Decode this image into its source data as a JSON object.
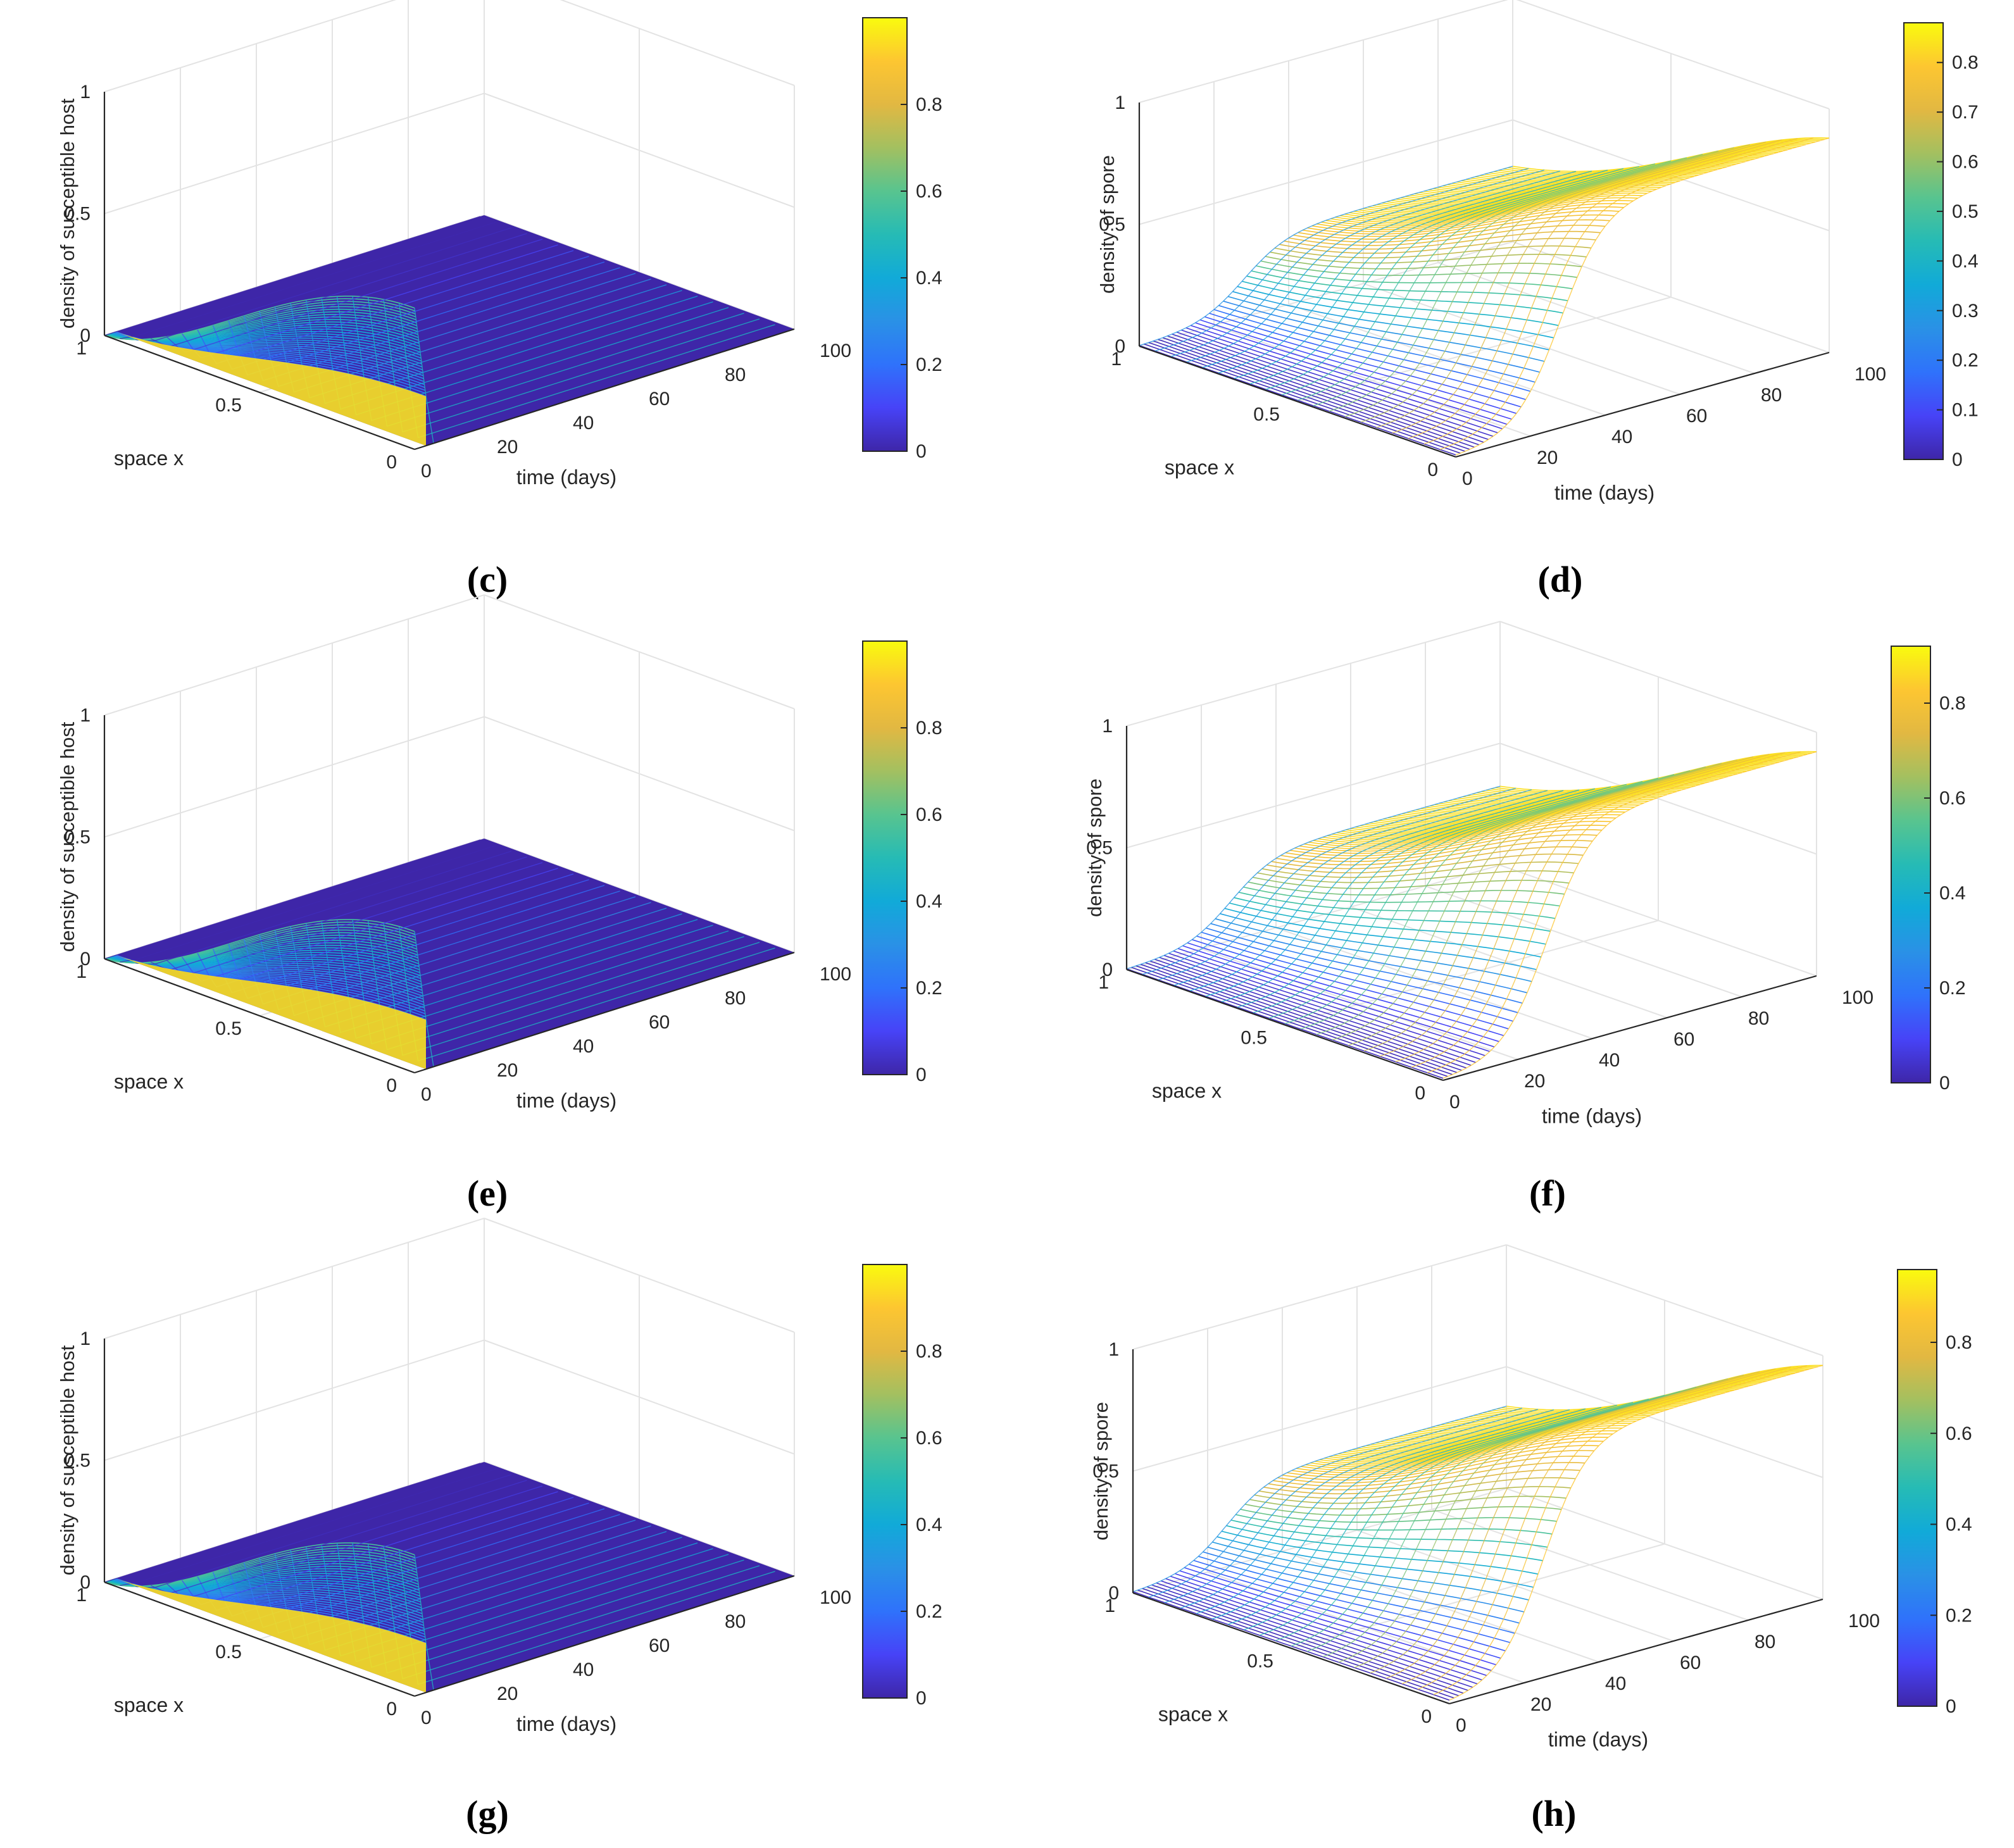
{
  "figure": {
    "colormap": [
      "#3e26a8",
      "#4743f7",
      "#2f72fb",
      "#2a91e6",
      "#11aad8",
      "#26bbb5",
      "#58c48f",
      "#a3c060",
      "#e2b842",
      "#fdc631",
      "#f9fb0e"
    ],
    "colors": {
      "axis": "#262626",
      "grid": "#e3e3e3",
      "mesh_low": "#3e26a8",
      "mesh_high": "#f9fb0e"
    }
  },
  "chart_data": [
    {
      "id": "c",
      "type": "surface",
      "caption": "(c)",
      "title": "",
      "zlabel": "density of susceptible host",
      "xlabel": "space x",
      "ylabel": "time (days)",
      "x_range": [
        0,
        1
      ],
      "t_range": [
        0,
        100
      ],
      "zlim": [
        0,
        1
      ],
      "z_ticks": [
        "0",
        "0.5",
        "1"
      ],
      "x_ticks": [
        "0",
        "0.5",
        "1"
      ],
      "t_ticks": [
        "0",
        "20",
        "40",
        "60",
        "80",
        "100"
      ],
      "colorbar_ticks": [
        "0",
        "0.2",
        "0.4",
        "0.6",
        "0.8"
      ],
      "colorbar_max": 1.0,
      "profile": {
        "kind": "host",
        "peak": 0.58,
        "t_end": 3
      }
    },
    {
      "id": "d",
      "type": "surface",
      "caption": "(d)",
      "title": "",
      "zlabel": "density of spore",
      "xlabel": "space x",
      "ylabel": "time (days)",
      "x_range": [
        0,
        1
      ],
      "t_range": [
        0,
        100
      ],
      "zlim": [
        0,
        1
      ],
      "z_ticks": [
        "0",
        "0.5",
        "1"
      ],
      "x_ticks": [
        "0",
        "0.5",
        "1"
      ],
      "t_ticks": [
        "0",
        "20",
        "40",
        "60",
        "80",
        "100"
      ],
      "colorbar_ticks": [
        "0",
        "0.1",
        "0.2",
        "0.3",
        "0.4",
        "0.5",
        "0.6",
        "0.7",
        "0.8"
      ],
      "colorbar_max": 0.88,
      "profile": {
        "kind": "spore",
        "plateau": 0.88,
        "rise_t": 28
      }
    },
    {
      "id": "e",
      "type": "surface",
      "caption": "(e)",
      "title": "",
      "zlabel": "density of susceptible host",
      "xlabel": "space x",
      "ylabel": "time (days)",
      "x_range": [
        0,
        1
      ],
      "t_range": [
        0,
        100
      ],
      "zlim": [
        0,
        1
      ],
      "z_ticks": [
        "0",
        "0.5",
        "1"
      ],
      "x_ticks": [
        "0",
        "0.5",
        "1"
      ],
      "t_ticks": [
        "0",
        "20",
        "40",
        "60",
        "80",
        "100"
      ],
      "colorbar_ticks": [
        "0",
        "0.2",
        "0.4",
        "0.6",
        "0.8"
      ],
      "colorbar_max": 1.0,
      "profile": {
        "kind": "host",
        "peak": 0.58,
        "t_end": 3
      }
    },
    {
      "id": "f",
      "type": "surface",
      "caption": "(f)",
      "title": "",
      "zlabel": "density of spore",
      "xlabel": "space x",
      "ylabel": "time (days)",
      "x_range": [
        0,
        1
      ],
      "t_range": [
        0,
        100
      ],
      "zlim": [
        0,
        1
      ],
      "z_ticks": [
        "0",
        "0.5",
        "1"
      ],
      "x_ticks": [
        "0",
        "0.5",
        "1"
      ],
      "t_ticks": [
        "0",
        "20",
        "40",
        "60",
        "80",
        "100"
      ],
      "colorbar_ticks": [
        "0",
        "0.2",
        "0.4",
        "0.6",
        "0.8"
      ],
      "colorbar_max": 0.92,
      "profile": {
        "kind": "spore",
        "plateau": 0.92,
        "rise_t": 28
      }
    },
    {
      "id": "g",
      "type": "surface",
      "caption": "(g)",
      "title": "",
      "zlabel": "density of susceptible host",
      "xlabel": "space x",
      "ylabel": "time (days)",
      "x_range": [
        0,
        1
      ],
      "t_range": [
        0,
        100
      ],
      "zlim": [
        0,
        1
      ],
      "z_ticks": [
        "0",
        "0.5",
        "1"
      ],
      "x_ticks": [
        "0",
        "0.5",
        "1"
      ],
      "t_ticks": [
        "0",
        "20",
        "40",
        "60",
        "80",
        "100"
      ],
      "colorbar_ticks": [
        "0",
        "0.2",
        "0.4",
        "0.6",
        "0.8"
      ],
      "colorbar_max": 1.0,
      "profile": {
        "kind": "host",
        "peak": 0.58,
        "t_end": 3
      }
    },
    {
      "id": "h",
      "type": "surface",
      "caption": "(h)",
      "title": "",
      "zlabel": "density of spore",
      "xlabel": "space x",
      "ylabel": "time (days)",
      "x_range": [
        0,
        1
      ],
      "t_range": [
        0,
        100
      ],
      "zlim": [
        0,
        1
      ],
      "z_ticks": [
        "0",
        "0.5",
        "1"
      ],
      "x_ticks": [
        "0",
        "0.5",
        "1"
      ],
      "t_ticks": [
        "0",
        "20",
        "40",
        "60",
        "80",
        "100"
      ],
      "colorbar_ticks": [
        "0",
        "0.2",
        "0.4",
        "0.6",
        "0.8"
      ],
      "colorbar_max": 0.96,
      "profile": {
        "kind": "spore",
        "plateau": 0.96,
        "rise_t": 25
      }
    }
  ]
}
